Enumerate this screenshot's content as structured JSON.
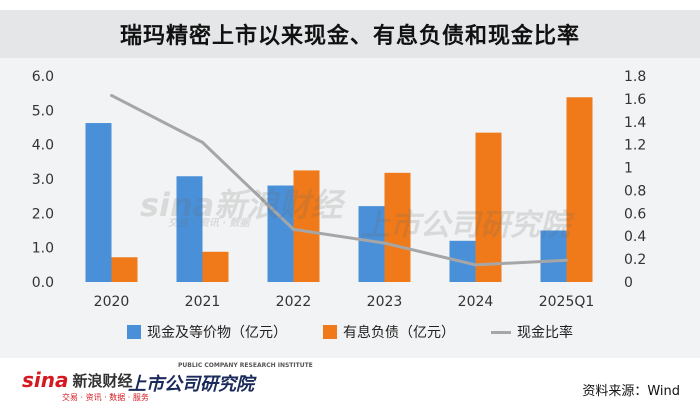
{
  "title": "瑞玛精密上市以来现金、有息负债和现金比率",
  "chart_data": {
    "type": "bar",
    "categories": [
      "2020",
      "2021",
      "2022",
      "2023",
      "2024",
      "2025Q1"
    ],
    "series": [
      {
        "name": "现金及等价物（亿元）",
        "kind": "bar",
        "axis": "left",
        "color": "#4a90d9",
        "values": [
          4.63,
          3.08,
          2.81,
          2.21,
          1.2,
          1.5
        ]
      },
      {
        "name": "有息负债（亿元）",
        "kind": "bar",
        "axis": "left",
        "color": "#f07a1a",
        "values": [
          0.72,
          0.88,
          3.25,
          3.18,
          4.35,
          5.38
        ]
      },
      {
        "name": "现金比率",
        "kind": "line",
        "axis": "right",
        "color": "#a6a6a6",
        "values": [
          1.63,
          1.22,
          0.46,
          0.34,
          0.15,
          0.19
        ]
      }
    ],
    "y_left": {
      "min": 0,
      "max": 6,
      "ticks": [
        "0.0",
        "1.0",
        "2.0",
        "3.0",
        "4.0",
        "5.0",
        "6.0"
      ]
    },
    "y_right": {
      "min": 0,
      "max": 1.8,
      "ticks": [
        "0",
        "0.2",
        "0.4",
        "0.6",
        "0.8",
        "1",
        "1.2",
        "1.4",
        "1.6",
        "1.8"
      ]
    },
    "grid": false,
    "legend_position": "bottom"
  },
  "watermark": {
    "brand": "sina新浪财经",
    "institute": "上市公司研究院",
    "sub": "交易 · 资讯 · 数据"
  },
  "footer": {
    "sina_logo": "sina",
    "sina_name": "新浪财经",
    "sina_tagline": "交易 · 资讯 · 数据 · 服务",
    "institute_name": "上市公司研究院",
    "institute_en": "PUBLIC COMPANY RESEARCH INSTITUTE",
    "source": "资料来源：Wind"
  }
}
